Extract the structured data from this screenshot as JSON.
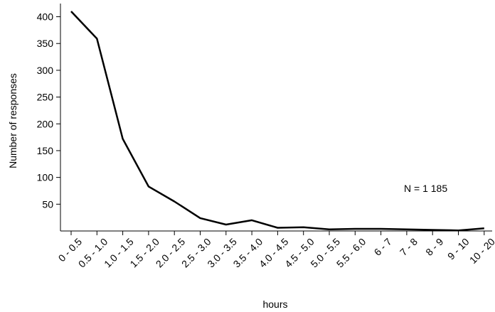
{
  "chart_data": {
    "type": "line",
    "xlabel": "hours",
    "ylabel": "Number of responses",
    "categories": [
      "0 - 0.5",
      "0.5 - 1.0",
      "1.0 - 1.5",
      "1.5 - 2.0",
      "2.0 - 2.5",
      "2.5 - 3.0",
      "3.0 - 3.5",
      "3.5 - 4.0",
      "4.0 - 4.5",
      "4.5 - 5.0",
      "5.0 - 5.5",
      "5.5 - 6.0",
      "6 - 7",
      "7 - 8",
      "8 - 9",
      "9 - 10",
      "10 - 20"
    ],
    "values": [
      410,
      359,
      172,
      83,
      55,
      24,
      12,
      20,
      6,
      7,
      3,
      4,
      4,
      3,
      2,
      1,
      5
    ],
    "ylim": [
      0,
      410
    ],
    "yticks": [
      50,
      100,
      150,
      200,
      250,
      300,
      350,
      400
    ],
    "grid": false,
    "annotation": "N = 1 185"
  }
}
